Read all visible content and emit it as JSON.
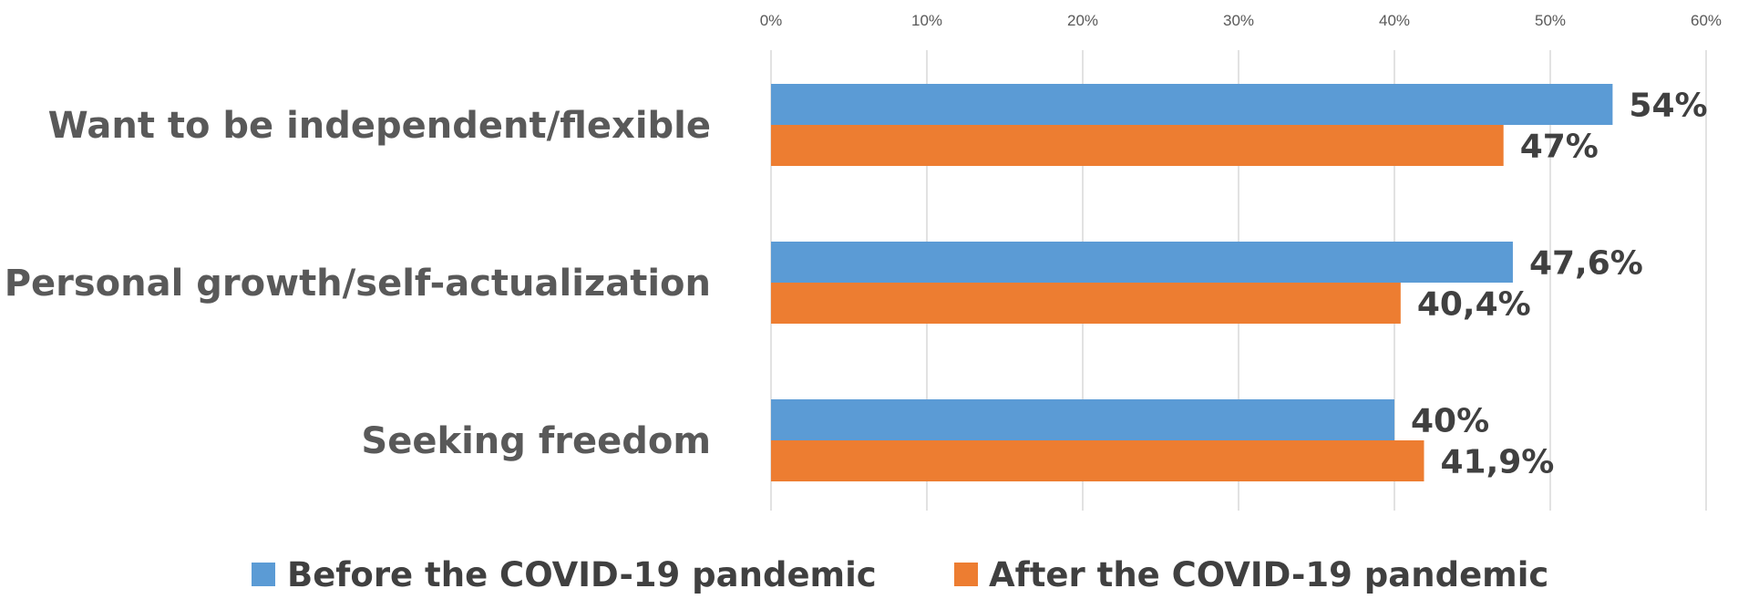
{
  "chart_data": {
    "type": "bar",
    "orientation": "horizontal",
    "categories": [
      "Want to be independent/flexible",
      "Personal growth/self-actualization",
      "Seeking freedom"
    ],
    "series": [
      {
        "name": "Before the COVID-19 pandemic",
        "color": "#5B9BD5",
        "values": [
          54,
          47.6,
          40
        ],
        "labels": [
          "54%",
          "47,6%",
          "40%"
        ]
      },
      {
        "name": "After the COVID-19 pandemic",
        "color": "#ED7D31",
        "values": [
          47,
          40.4,
          41.9
        ],
        "labels": [
          "47%",
          "40,4%",
          "41,9%"
        ]
      }
    ],
    "xlim": [
      0,
      60
    ],
    "x_ticks": [
      0,
      10,
      20,
      30,
      40,
      50,
      60
    ],
    "x_tick_labels": [
      "0%",
      "10%",
      "20%",
      "30%",
      "40%",
      "50%",
      "60%"
    ],
    "x_axis_position": "top",
    "grid": true,
    "legend_position": "bottom"
  }
}
